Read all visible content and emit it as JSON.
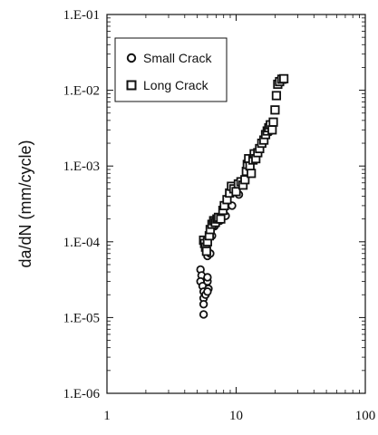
{
  "chart_data": {
    "type": "scatter",
    "title": "",
    "xlabel": "",
    "ylabel": "da/dN (mm/cycle)",
    "xscale": "log",
    "yscale": "log",
    "xlim": [
      1,
      100
    ],
    "ylim": [
      1e-06,
      0.1
    ],
    "grid": false,
    "legend_placement": "top-left",
    "x_tick_labels": [
      "1",
      "10",
      "100"
    ],
    "y_tick_labels": [
      "1.E-06",
      "1.E-05",
      "1.E-04",
      "1.E-03",
      "1.E-02",
      "1.E-01"
    ],
    "series": [
      {
        "name": "Small Crack",
        "marker": "circle",
        "points": [
          [
            5.3,
            4.3e-05
          ],
          [
            5.4,
            3.6e-05
          ],
          [
            5.3,
            3e-05
          ],
          [
            5.5,
            2.6e-05
          ],
          [
            5.6,
            2.2e-05
          ],
          [
            5.6,
            1.8e-05
          ],
          [
            5.6,
            1.5e-05
          ],
          [
            5.6,
            1.1e-05
          ],
          [
            5.8,
            2e-05
          ],
          [
            6.0,
            3e-05
          ],
          [
            6.0,
            3.4e-05
          ],
          [
            6.1,
            2.4e-05
          ],
          [
            6.0,
            2.2e-05
          ],
          [
            5.9,
            8e-05
          ],
          [
            6.0,
            6.5e-05
          ],
          [
            6.3,
            7e-05
          ],
          [
            6.5,
            0.00012
          ],
          [
            6.8,
            0.00016
          ],
          [
            7.5,
            0.00019
          ],
          [
            8.3,
            0.00022
          ],
          [
            9.3,
            0.0003
          ],
          [
            10.5,
            0.00042
          ],
          [
            11.5,
            0.00065
          ],
          [
            12.5,
            0.00095
          ],
          [
            14.0,
            0.0013
          ],
          [
            16.0,
            0.002
          ],
          [
            18.0,
            0.0028
          ]
        ]
      },
      {
        "name": "Long Crack",
        "marker": "square",
        "points": [
          [
            5.6,
            0.000105
          ],
          [
            5.7,
            9.5e-05
          ],
          [
            5.8,
            8.5e-05
          ],
          [
            5.9,
            7.5e-05
          ],
          [
            6.0,
            0.0001
          ],
          [
            6.2,
            0.00012
          ],
          [
            6.3,
            0.000145
          ],
          [
            6.5,
            0.00017
          ],
          [
            6.7,
            0.00019
          ],
          [
            6.9,
            0.00018
          ],
          [
            7.1,
            0.0002
          ],
          [
            7.3,
            0.00021
          ],
          [
            7.6,
            0.0002
          ],
          [
            7.9,
            0.00026
          ],
          [
            8.1,
            0.0003
          ],
          [
            8.5,
            0.00036
          ],
          [
            8.9,
            0.00044
          ],
          [
            9.2,
            0.00054
          ],
          [
            9.6,
            0.0005
          ],
          [
            10.0,
            0.00046
          ],
          [
            10.4,
            0.00058
          ],
          [
            10.9,
            0.00062
          ],
          [
            11.3,
            0.00056
          ],
          [
            11.7,
            0.00066
          ],
          [
            12.0,
            0.00085
          ],
          [
            12.2,
            0.00105
          ],
          [
            12.5,
            0.00125
          ],
          [
            12.8,
            0.001
          ],
          [
            13.1,
            0.0008
          ],
          [
            13.5,
            0.0012
          ],
          [
            13.8,
            0.00145
          ],
          [
            14.2,
            0.00125
          ],
          [
            14.7,
            0.0015
          ],
          [
            15.2,
            0.0017
          ],
          [
            15.8,
            0.002
          ],
          [
            16.4,
            0.0022
          ],
          [
            16.9,
            0.0026
          ],
          [
            17.4,
            0.0029
          ],
          [
            17.9,
            0.0032
          ],
          [
            18.4,
            0.0035
          ],
          [
            19.0,
            0.003
          ],
          [
            19.4,
            0.0038
          ],
          [
            20.0,
            0.0055
          ],
          [
            20.5,
            0.0085
          ],
          [
            21.0,
            0.012
          ],
          [
            21.7,
            0.013
          ],
          [
            22.6,
            0.014
          ],
          [
            23.4,
            0.0142
          ]
        ]
      }
    ]
  }
}
